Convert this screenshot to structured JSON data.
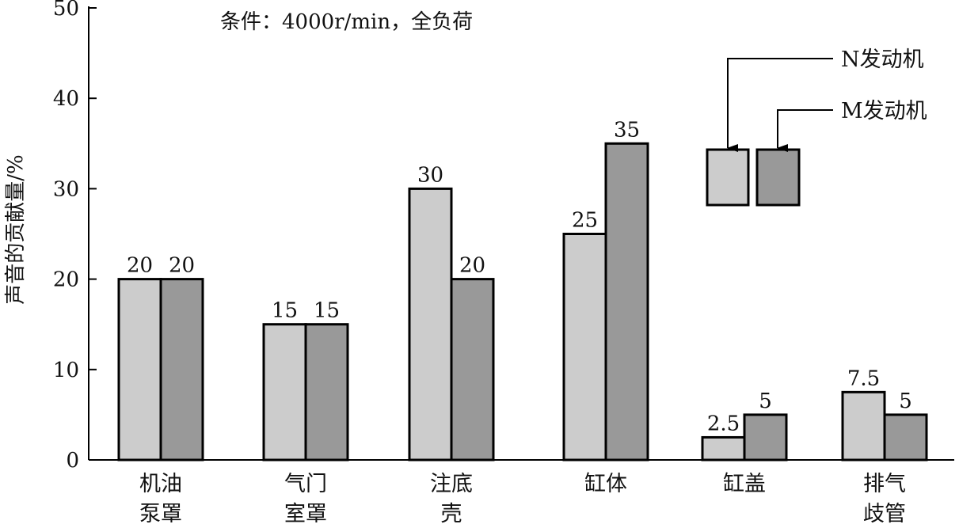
{
  "chart_data": {
    "type": "bar",
    "title": "",
    "annotation": "条件：4000r/min，全负荷",
    "xlabel": "",
    "ylabel": "声音的贡献量/%",
    "ylim": [
      0,
      50
    ],
    "yticks": [
      0,
      10,
      20,
      30,
      40,
      50
    ],
    "grid": false,
    "legend_position": "top-right",
    "categories": [
      [
        "机油",
        "泵罩"
      ],
      [
        "气门",
        "室罩"
      ],
      [
        "注底",
        "壳"
      ],
      [
        "缸体"
      ],
      [
        "缸盖"
      ],
      [
        "排气",
        "歧管"
      ]
    ],
    "series": [
      {
        "name": "N发动机",
        "color": "#cccccc",
        "values": [
          20,
          15,
          30,
          25,
          2.5,
          7.5
        ]
      },
      {
        "name": "M发动机",
        "color": "#999999",
        "values": [
          20,
          15,
          20,
          35,
          5,
          5
        ]
      }
    ],
    "data_labels": [
      [
        "20",
        "15",
        "30",
        "25",
        "2.5",
        "7.5"
      ],
      [
        "20",
        "15",
        "20",
        "35",
        "5",
        "5"
      ]
    ]
  }
}
